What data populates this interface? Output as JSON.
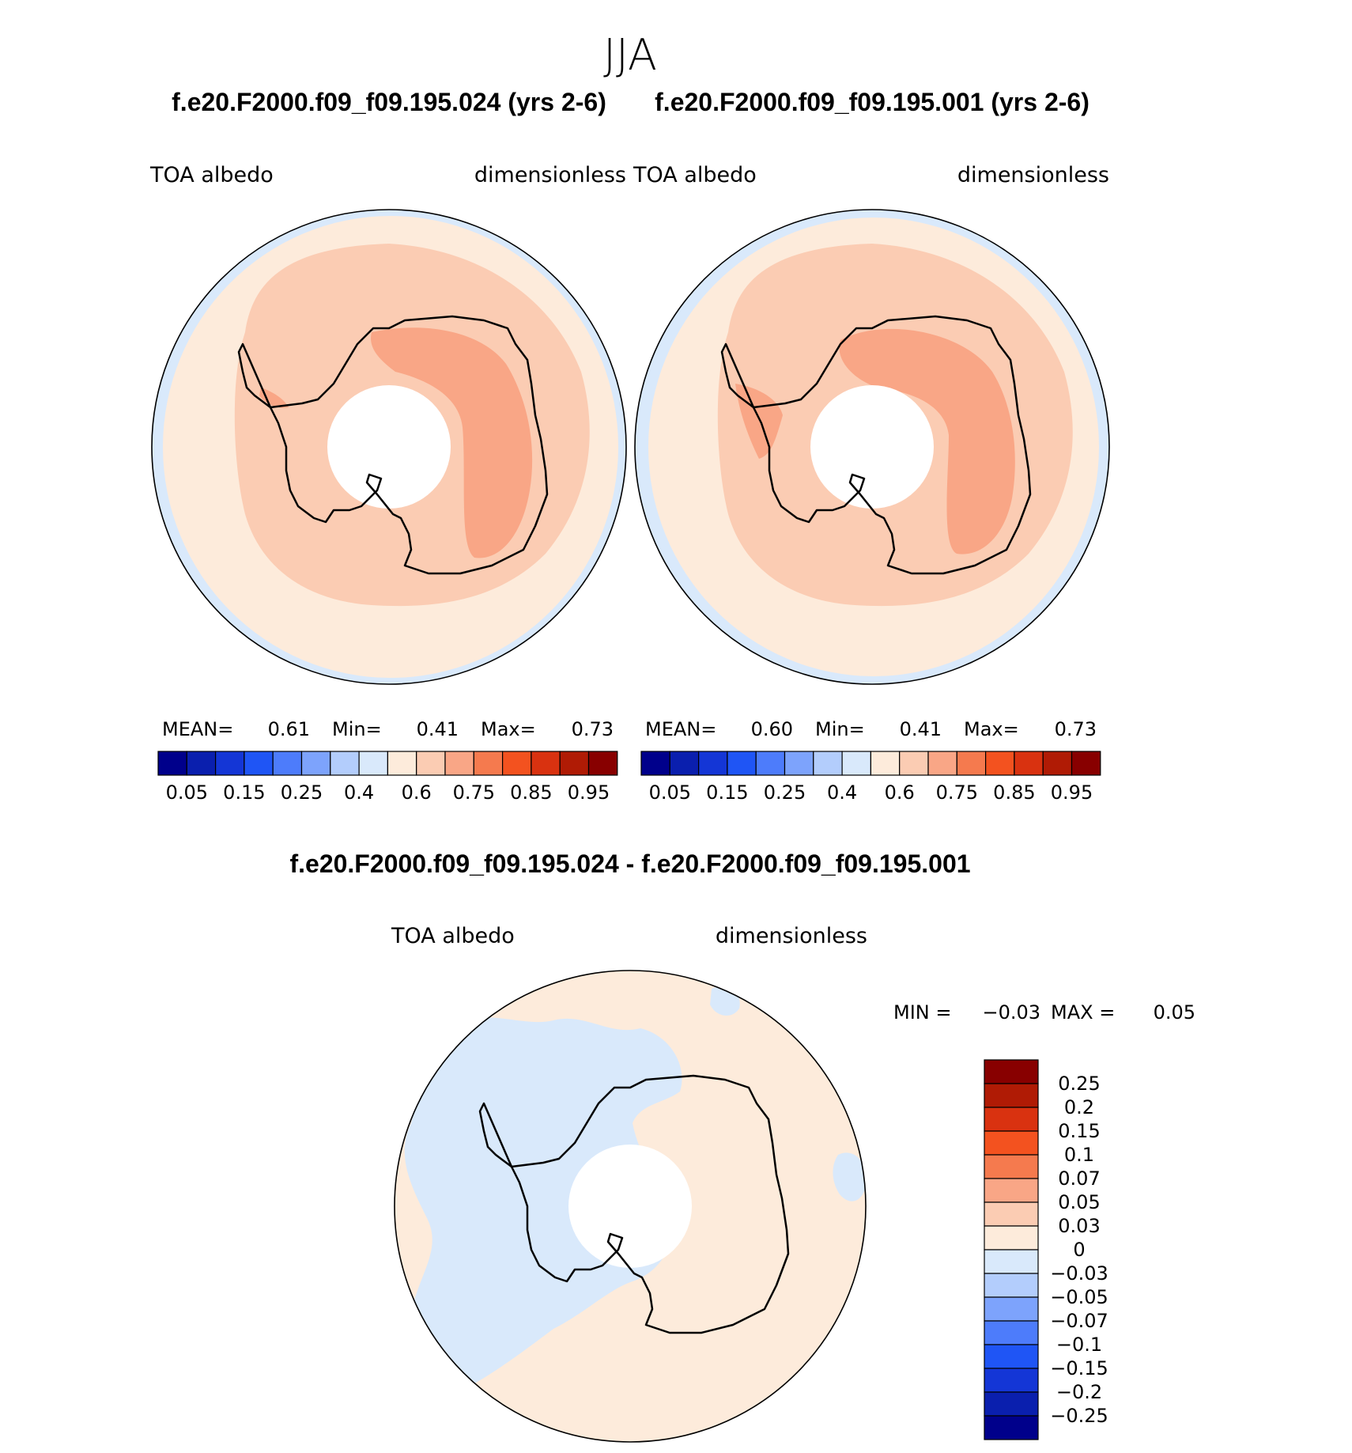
{
  "figure": {
    "season": "JJA",
    "panels": [
      {
        "case_title": "f.e20.F2000.f09_f09.195.024 (yrs 2-6)",
        "var_label": "TOA albedo",
        "units_label": "dimensionless",
        "mean_label": "MEAN=",
        "mean_value": "0.61",
        "min_label": "Min=",
        "min_value": "0.41",
        "max_label": "Max=",
        "max_value": "0.73"
      },
      {
        "case_title": "f.e20.F2000.f09_f09.195.001 (yrs 2-6)",
        "var_label": "TOA albedo",
        "units_label": "dimensionless",
        "mean_label": "MEAN=",
        "mean_value": "0.60",
        "min_label": "Min=",
        "min_value": "0.41",
        "max_label": "Max=",
        "max_value": "0.73"
      }
    ],
    "abs_colorbar": {
      "colors": [
        "#00008b",
        "#0a1fae",
        "#1436d6",
        "#1f55f5",
        "#4d7cfb",
        "#7da3fc",
        "#b3cdfc",
        "#d9e9fb",
        "#fdebdb",
        "#fbccb3",
        "#f9a686",
        "#f57a4e",
        "#f3521f",
        "#d93210",
        "#b01b05",
        "#880000"
      ],
      "tick_labels": [
        "0.05",
        "0.15",
        "0.25",
        "0.4",
        "0.6",
        "0.75",
        "0.85",
        "0.95"
      ]
    },
    "diff_panel": {
      "title": "f.e20.F2000.f09_f09.195.024 - f.e20.F2000.f09_f09.195.001",
      "var_label": "TOA albedo",
      "units_label": "dimensionless",
      "min_label": "MIN =",
      "min_value": "−0.03",
      "max_label": "MAX =",
      "max_value": "0.05"
    },
    "diff_colorbar": {
      "colors": [
        "#880000",
        "#b01b05",
        "#d93210",
        "#f3521f",
        "#f57a4e",
        "#f9a686",
        "#fbccb3",
        "#fdebdb",
        "#d9e9fb",
        "#b3cdfc",
        "#7da3fc",
        "#4d7cfb",
        "#1f55f5",
        "#1436d6",
        "#0a1fae",
        "#00008b"
      ],
      "tick_labels": [
        "0.25",
        "0.2",
        "0.15",
        "0.1",
        "0.07",
        "0.05",
        "0.03",
        "0",
        "−0.03",
        "−0.05",
        "−0.07",
        "−0.1",
        "−0.15",
        "−0.2",
        "−0.25"
      ]
    }
  }
}
